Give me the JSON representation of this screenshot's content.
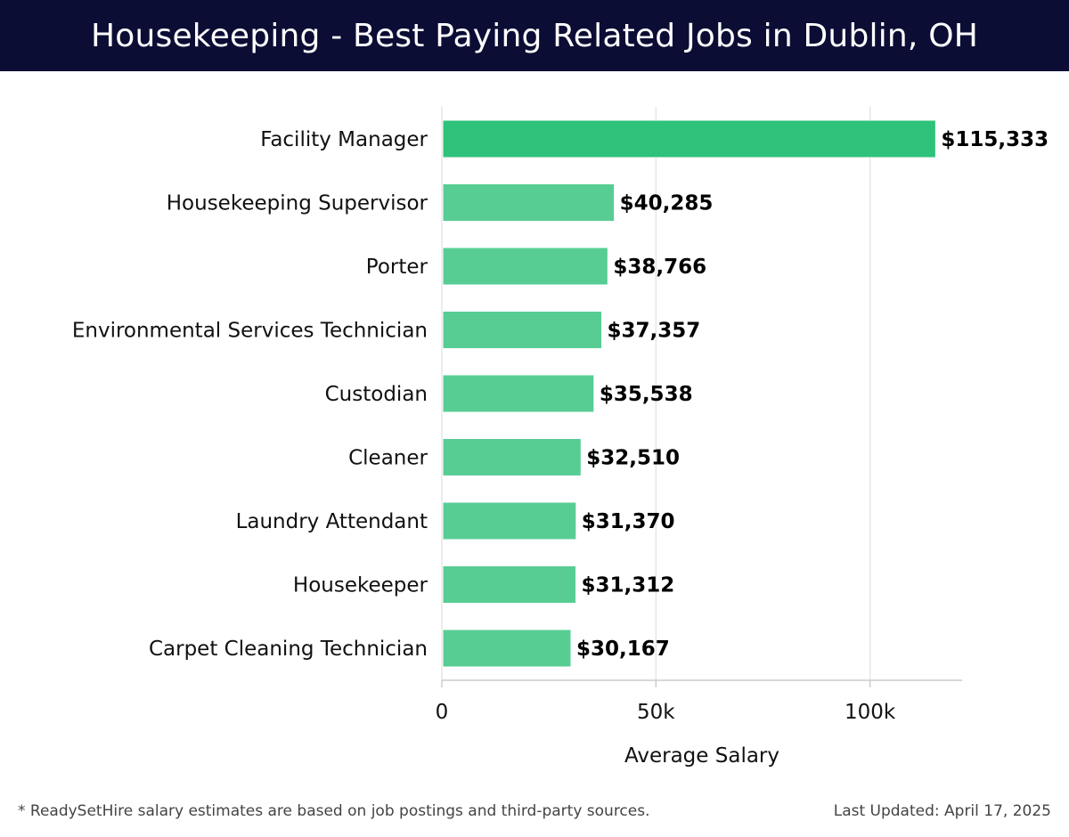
{
  "header": {
    "title": "Housekeeping - Best Paying Related Jobs in Dublin, OH"
  },
  "chart_data": {
    "type": "bar",
    "orientation": "horizontal",
    "categories": [
      "Facility Manager",
      "Housekeeping Supervisor",
      "Porter",
      "Environmental Services Technician",
      "Custodian",
      "Cleaner",
      "Laundry Attendant",
      "Housekeeper",
      "Carpet Cleaning Technician"
    ],
    "values": [
      115333,
      40285,
      38766,
      37357,
      35538,
      32510,
      31370,
      31312,
      30167
    ],
    "value_labels": [
      "$115,333",
      "$40,285",
      "$38,766",
      "$37,357",
      "$35,538",
      "$32,510",
      "$31,370",
      "$31,312",
      "$30,167"
    ],
    "xlabel": "Average Salary",
    "ylabel": "",
    "xlim": [
      0,
      121500
    ],
    "xticks": [
      0,
      50000,
      100000
    ],
    "xtick_labels": [
      "0",
      "50k",
      "100k"
    ],
    "grid": "vertical",
    "colors": {
      "top_bar": "#2ec27a",
      "bar": "#57cd94",
      "grid": "#e6e6e6",
      "axis": "#cccccc"
    }
  },
  "footer": {
    "note": "* ReadySetHire salary estimates are based on job postings and third-party sources.",
    "updated": "Last Updated: April 17, 2025"
  }
}
